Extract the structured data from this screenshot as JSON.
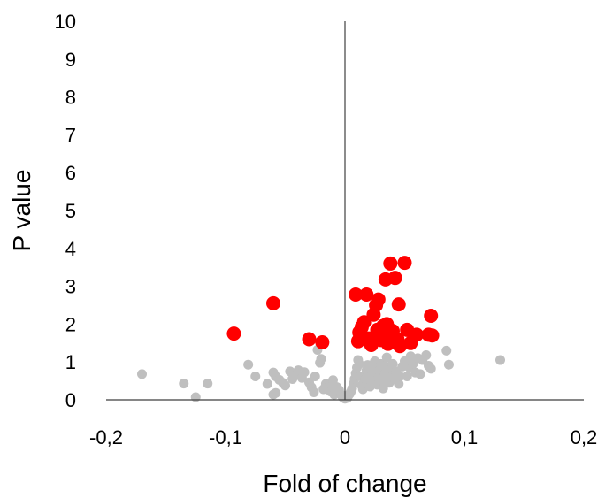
{
  "chart_data": {
    "type": "scatter",
    "title": "",
    "xlabel": "Fold of change",
    "ylabel": "P value",
    "xlim": [
      -0.2,
      0.2
    ],
    "ylim": [
      0,
      10
    ],
    "grid": false,
    "legend": "none",
    "x_ticks": [
      "-0,2",
      "-0,1",
      "0",
      "0,1",
      "0,2"
    ],
    "x_tick_values": [
      -0.2,
      -0.1,
      0,
      0.1,
      0.2
    ],
    "y_ticks": [
      "0",
      "1",
      "2",
      "3",
      "4",
      "5",
      "6",
      "7",
      "8",
      "9",
      "10"
    ],
    "y_tick_values": [
      0,
      1,
      2,
      3,
      4,
      5,
      6,
      7,
      8,
      9,
      10
    ],
    "series": [
      {
        "color": "#bfbfbf",
        "marker_size": "small",
        "points": [
          [
            -0.17,
            0.68
          ],
          [
            -0.135,
            0.43
          ],
          [
            -0.115,
            0.43
          ],
          [
            -0.125,
            0.07
          ],
          [
            -0.081,
            0.93
          ],
          [
            -0.075,
            0.62
          ],
          [
            -0.065,
            0.42
          ],
          [
            -0.06,
            0.72
          ],
          [
            -0.058,
            0.62
          ],
          [
            -0.055,
            0.53
          ],
          [
            -0.052,
            0.45
          ],
          [
            -0.05,
            0.38
          ],
          [
            -0.046,
            0.75
          ],
          [
            -0.044,
            0.55
          ],
          [
            -0.041,
            0.65
          ],
          [
            -0.039,
            0.78
          ],
          [
            -0.036,
            0.58
          ],
          [
            -0.034,
            0.73
          ],
          [
            -0.06,
            0.14
          ],
          [
            -0.058,
            0.18
          ],
          [
            -0.03,
            0.46
          ],
          [
            -0.028,
            0.33
          ],
          [
            -0.026,
            0.2
          ],
          [
            -0.025,
            0.62
          ],
          [
            -0.023,
            1.32
          ],
          [
            -0.021,
            0.98
          ],
          [
            -0.02,
            1.08
          ],
          [
            -0.018,
            0.28
          ],
          [
            -0.016,
            0.42
          ],
          [
            -0.014,
            0.33
          ],
          [
            -0.012,
            0.22
          ],
          [
            -0.01,
            0.52
          ],
          [
            -0.009,
            0.14
          ],
          [
            -0.007,
            0.34
          ],
          [
            -0.005,
            0.26
          ],
          [
            -0.003,
            0.13
          ],
          [
            -0.002,
            0.07
          ],
          [
            0.0,
            0.03
          ],
          [
            0.001,
            0.08
          ],
          [
            0.002,
            0.05
          ],
          [
            0.003,
            0.12
          ],
          [
            0.004,
            0.16
          ],
          [
            0.005,
            0.22
          ],
          [
            0.006,
            0.3
          ],
          [
            0.007,
            0.42
          ],
          [
            0.008,
            0.55
          ],
          [
            0.009,
            0.7
          ],
          [
            0.01,
            0.85
          ],
          [
            0.011,
            1.05
          ],
          [
            0.012,
            0.95
          ],
          [
            0.013,
            0.62
          ],
          [
            0.014,
            0.38
          ],
          [
            0.015,
            0.28
          ],
          [
            0.016,
            0.45
          ],
          [
            0.017,
            0.55
          ],
          [
            0.018,
            0.78
          ],
          [
            0.019,
            0.92
          ],
          [
            0.02,
            0.6
          ],
          [
            0.021,
            0.35
          ],
          [
            0.022,
            0.5
          ],
          [
            0.023,
            0.72
          ],
          [
            0.024,
            0.85
          ],
          [
            0.025,
            1.02
          ],
          [
            0.026,
            0.65
          ],
          [
            0.027,
            0.4
          ],
          [
            0.028,
            0.58
          ],
          [
            0.029,
            0.78
          ],
          [
            0.03,
            0.95
          ],
          [
            0.031,
            0.52
          ],
          [
            0.032,
            0.3
          ],
          [
            0.033,
            0.68
          ],
          [
            0.034,
            0.88
          ],
          [
            0.035,
            1.12
          ],
          [
            0.036,
            0.7
          ],
          [
            0.037,
            0.45
          ],
          [
            0.038,
            0.6
          ],
          [
            0.039,
            0.82
          ],
          [
            0.04,
            0.95
          ],
          [
            0.042,
            0.55
          ],
          [
            0.043,
            0.75
          ],
          [
            0.045,
            0.42
          ],
          [
            0.046,
            0.62
          ],
          [
            0.048,
            0.88
          ],
          [
            0.05,
            1.02
          ],
          [
            0.052,
            0.62
          ],
          [
            0.054,
            0.85
          ],
          [
            0.055,
            1.15
          ],
          [
            0.057,
            0.95
          ],
          [
            0.059,
            0.72
          ],
          [
            0.061,
            1.1
          ],
          [
            0.063,
            0.68
          ],
          [
            0.065,
            1.05
          ],
          [
            0.068,
            1.18
          ],
          [
            0.07,
            0.9
          ],
          [
            0.072,
            0.82
          ],
          [
            0.085,
            1.3
          ],
          [
            0.087,
            0.93
          ],
          [
            0.13,
            1.05
          ]
        ]
      },
      {
        "color": "#ff0000",
        "marker_size": "large",
        "points": [
          [
            -0.093,
            1.75
          ],
          [
            -0.06,
            2.55
          ],
          [
            -0.03,
            1.6
          ],
          [
            -0.019,
            1.52
          ],
          [
            0.009,
            2.78
          ],
          [
            0.011,
            1.55
          ],
          [
            0.012,
            1.78
          ],
          [
            0.014,
            1.92
          ],
          [
            0.016,
            2.05
          ],
          [
            0.018,
            2.78
          ],
          [
            0.02,
            1.62
          ],
          [
            0.022,
            1.45
          ],
          [
            0.024,
            2.25
          ],
          [
            0.026,
            2.5
          ],
          [
            0.027,
            1.85
          ],
          [
            0.028,
            2.65
          ],
          [
            0.03,
            1.58
          ],
          [
            0.032,
            1.95
          ],
          [
            0.033,
            1.72
          ],
          [
            0.034,
            3.18
          ],
          [
            0.035,
            2.0
          ],
          [
            0.036,
            1.48
          ],
          [
            0.038,
            3.6
          ],
          [
            0.04,
            1.82
          ],
          [
            0.042,
            3.22
          ],
          [
            0.044,
            1.6
          ],
          [
            0.045,
            2.52
          ],
          [
            0.046,
            1.42
          ],
          [
            0.05,
            3.62
          ],
          [
            0.052,
            1.85
          ],
          [
            0.055,
            1.5
          ],
          [
            0.06,
            1.72
          ],
          [
            0.07,
            1.72
          ],
          [
            0.072,
            2.22
          ],
          [
            0.073,
            1.7
          ]
        ]
      }
    ]
  }
}
